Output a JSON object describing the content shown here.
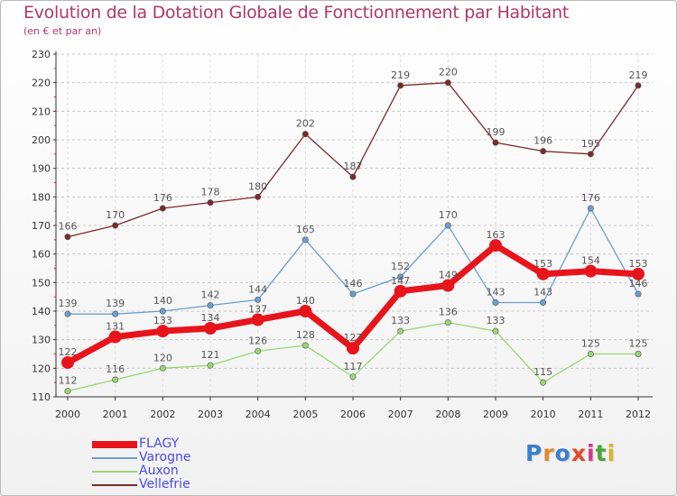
{
  "title": "Evolution de la Dotation Globale de Fonctionnement par Habitant",
  "subtitle": "(en € et par an)",
  "logo": {
    "text": "Proxiti",
    "colors": [
      "#3a7fd0",
      "#e08a2a",
      "#3a7fd0",
      "#e34a2a",
      "#d03a8a",
      "#4aa53a",
      "#e0b02a"
    ]
  },
  "chart_data": {
    "type": "line",
    "x": [
      "2000",
      "2001",
      "2002",
      "2003",
      "2004",
      "2005",
      "2006",
      "2007",
      "2008",
      "2009",
      "2010",
      "2011",
      "2012"
    ],
    "ylim": [
      110,
      230
    ],
    "yticks": [
      110,
      120,
      130,
      140,
      150,
      160,
      170,
      180,
      190,
      200,
      210,
      220,
      230
    ],
    "grid": "horizontal dashed",
    "legend": "bottom-left",
    "series": [
      {
        "name": "FLAGY",
        "color": "#e8141b",
        "values": [
          122,
          131,
          133,
          134,
          137,
          140,
          127,
          147,
          149,
          163,
          153,
          154,
          153
        ]
      },
      {
        "name": "Varogne",
        "color": "#6a9fd0",
        "values": [
          139,
          139,
          140,
          142,
          144,
          165,
          146,
          152,
          170,
          143,
          143,
          176,
          146
        ]
      },
      {
        "name": "Auxon",
        "color": "#99d673",
        "values": [
          112,
          116,
          120,
          121,
          126,
          128,
          117,
          133,
          136,
          133,
          115,
          125,
          125
        ]
      },
      {
        "name": "Vellefrie",
        "color": "#7b2a2a",
        "values": [
          166,
          170,
          176,
          178,
          180,
          202,
          187,
          219,
          220,
          199,
          196,
          195,
          219
        ]
      }
    ]
  }
}
